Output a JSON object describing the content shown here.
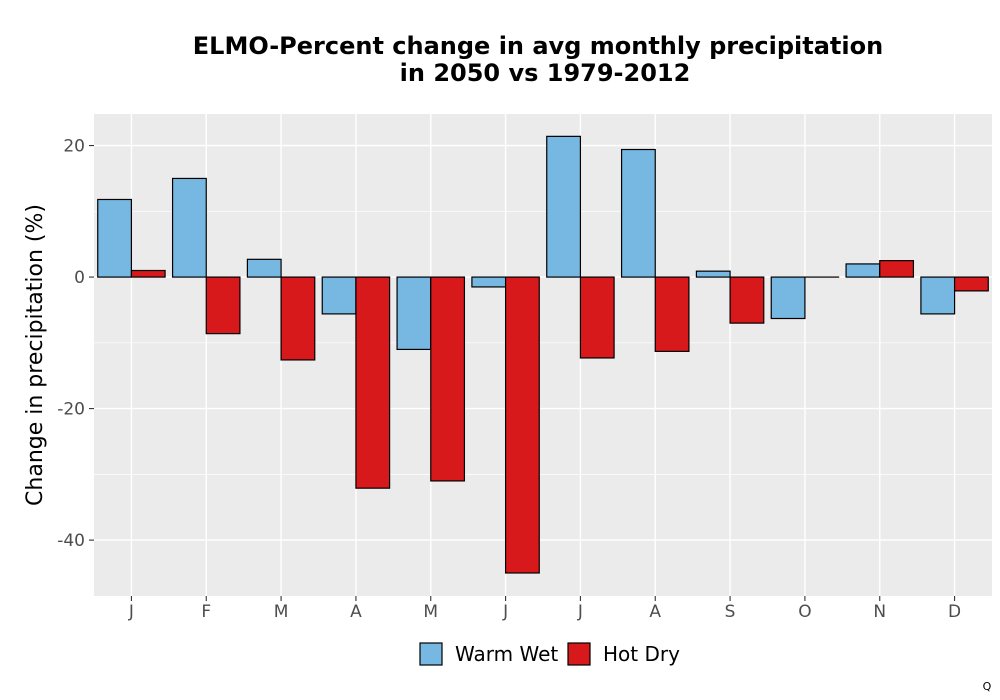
{
  "chart_data": {
    "type": "bar",
    "title_line1": "ELMO-Percent change in avg monthly precipitation",
    "title_line2": "in 2050 vs 1979-2012",
    "xlabel": "",
    "ylabel": "Change in precipitation (%)",
    "categories": [
      "J",
      "F",
      "M",
      "A",
      "M",
      "J",
      "J",
      "A",
      "S",
      "O",
      "N",
      "D"
    ],
    "series": [
      {
        "name": "Warm Wet",
        "color": "#77B8E2",
        "values": [
          11.8,
          15.0,
          2.7,
          -5.6,
          -11.0,
          -1.5,
          21.4,
          19.4,
          0.9,
          -6.3,
          2.0,
          -5.6
        ]
      },
      {
        "name": "Hot Dry",
        "color": "#D7191C",
        "values": [
          1.0,
          -8.6,
          -12.6,
          -32.1,
          -31.0,
          -45.0,
          -12.3,
          -11.3,
          -7.0,
          0.0,
          2.5,
          -2.1
        ]
      }
    ],
    "ylim": [
      -48.5,
      24.8
    ],
    "yticks": [
      20,
      0,
      -20,
      -40
    ],
    "ytick_labels": [
      "20",
      "0",
      "-20",
      "-40"
    ],
    "grid": true,
    "panel_background": "#EBEBEB",
    "legend_position": "bottom"
  },
  "corner_mark": "Q"
}
